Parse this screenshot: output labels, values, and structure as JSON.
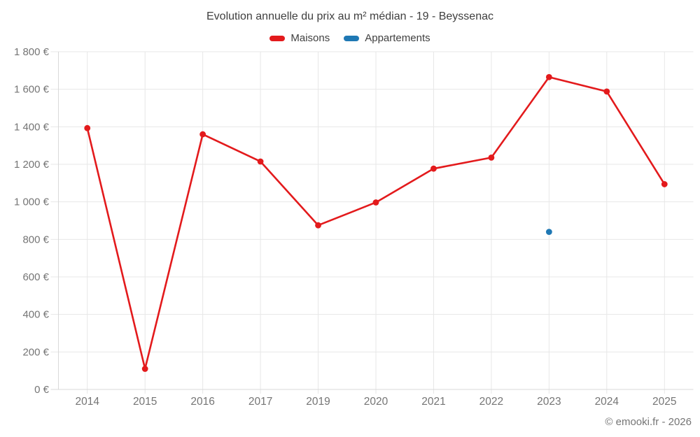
{
  "header": {
    "title": "Evolution annuelle du prix au m² médian - 19 - Beyssenac"
  },
  "footer": {
    "credit": "© emooki.fr - 2026"
  },
  "colors": {
    "maisons": "#e31a1c",
    "appartements": "#1f78b4",
    "grid": "#e7e7e7",
    "axis": "#d9d9d9",
    "tick_label": "#757575",
    "title_text": "#3f3f3f"
  },
  "chart_data": {
    "type": "line",
    "title": "Evolution annuelle du prix au m² médian - 19 - Beyssenac",
    "categories": [
      "2014",
      "2015",
      "2016",
      "2017",
      "2019",
      "2020",
      "2021",
      "2022",
      "2023",
      "2024",
      "2025"
    ],
    "series": [
      {
        "name": "Maisons",
        "color": "#e31a1c",
        "values": [
          1393,
          110,
          1360,
          1215,
          875,
          997,
          1177,
          1236,
          1665,
          1588,
          1094
        ]
      },
      {
        "name": "Appartements",
        "color": "#1f78b4",
        "values": [
          null,
          null,
          null,
          null,
          null,
          null,
          null,
          null,
          840,
          null,
          null
        ]
      }
    ],
    "xlabel": "",
    "ylabel": "",
    "ylim": [
      0,
      1800
    ],
    "y_tick_step": 200,
    "y_tick_labels": [
      "0 €",
      "200 €",
      "400 €",
      "600 €",
      "800 €",
      "1 000 €",
      "1 200 €",
      "1 400 €",
      "1 600 €",
      "1 800 €"
    ],
    "grid": true,
    "legend_position": "top-center"
  }
}
